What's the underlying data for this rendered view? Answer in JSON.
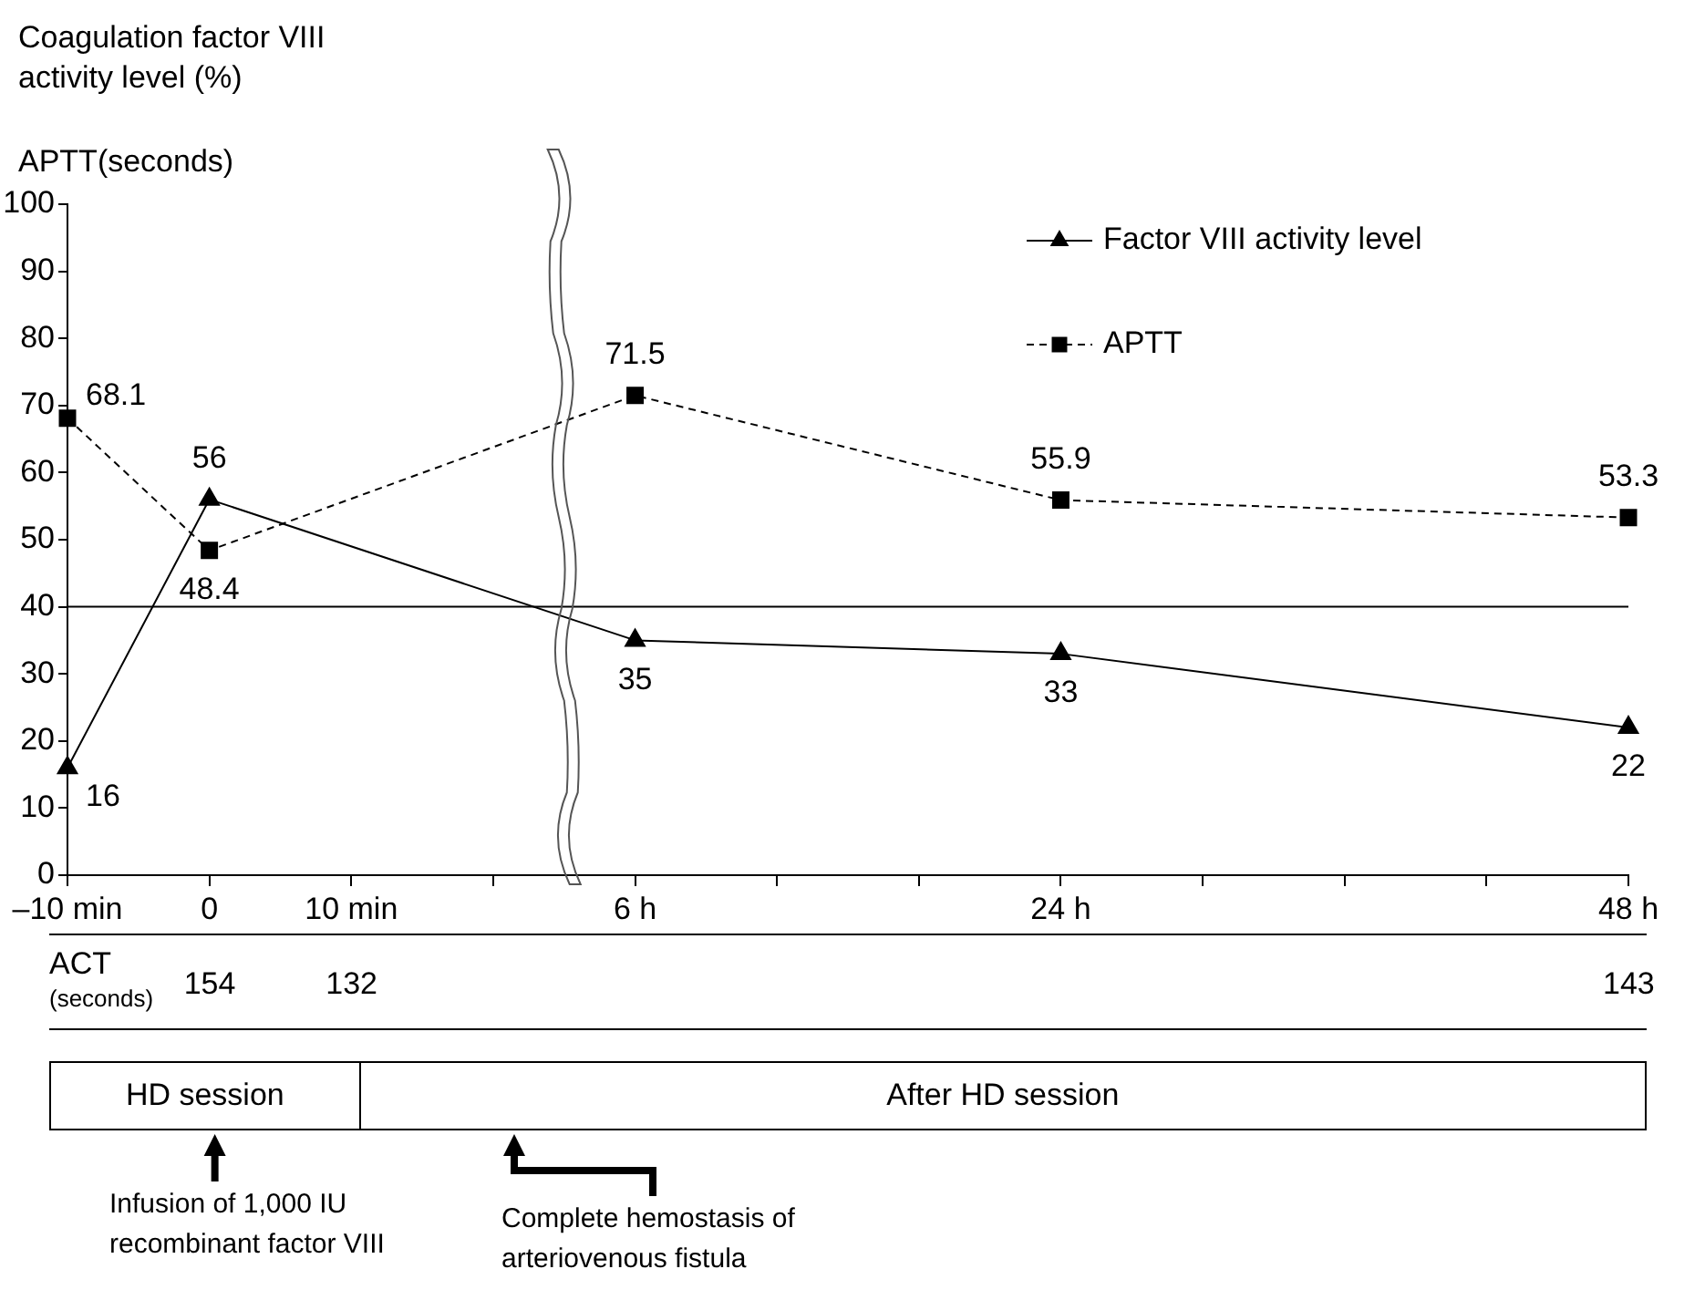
{
  "chart_data": {
    "type": "line",
    "ylabel": "Coagulation factor VIII activity level (%)",
    "categories": [
      "–10 min",
      "0",
      "10 min",
      null,
      "6 h",
      null,
      null,
      "24 h",
      null,
      null,
      null,
      "48 h"
    ],
    "series": [
      {
        "name": "Factor VIII activity level",
        "color": "#000000",
        "marker": "triangle",
        "line_style": "solid",
        "values": [
          16,
          56,
          null,
          null,
          35,
          null,
          null,
          33,
          null,
          null,
          null,
          22
        ]
      },
      {
        "name": "APTT",
        "color": "#000000",
        "marker": "square",
        "line_style": "dashed",
        "values": [
          68.1,
          48.4,
          null,
          null,
          71.5,
          null,
          null,
          55.9,
          null,
          null,
          null,
          53.3
        ]
      }
    ],
    "ylim": [
      0,
      100
    ],
    "yticks": [
      0,
      10,
      20,
      30,
      40,
      50,
      60,
      70,
      80,
      90,
      100
    ],
    "ref_lines": [
      {
        "axis": "y",
        "value": 40,
        "color": "#000000"
      }
    ],
    "data_labels": true,
    "legend": "top right",
    "grid": false,
    "annotations": [
      "APTT(seconds)",
      "ACT",
      "(seconds)",
      "154",
      "132",
      "143",
      "HD session",
      "After HD session",
      "Infusion of 1,000 IU recombinant factor VIII",
      "Complete hemostasis of arteriovenous fistula"
    ]
  }
}
